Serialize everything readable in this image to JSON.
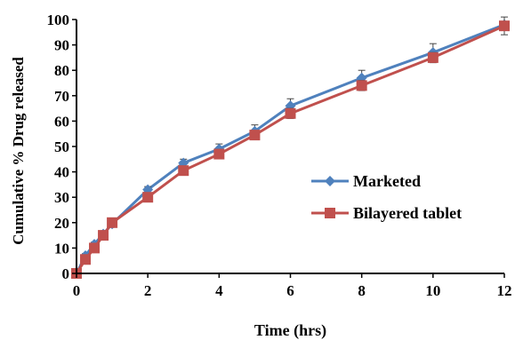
{
  "chart_data": {
    "type": "line",
    "title": "",
    "xlabel": "Time (hrs)",
    "ylabel": "Cumulative % Drug released",
    "xlim": [
      0,
      12
    ],
    "ylim": [
      0,
      100
    ],
    "xticks": [
      0,
      2,
      4,
      6,
      8,
      10,
      12
    ],
    "yticks": [
      0,
      10,
      20,
      30,
      40,
      50,
      60,
      70,
      80,
      90,
      100
    ],
    "grid": false,
    "legend_position": "right",
    "series": [
      {
        "name": "Marketed",
        "color": "#4F81BD",
        "marker": "diamond",
        "x": [
          0,
          0.25,
          0.5,
          0.75,
          1,
          2,
          3,
          4,
          5,
          6,
          8,
          10,
          12
        ],
        "y": [
          0,
          7,
          11.5,
          15.5,
          19.5,
          33,
          43.5,
          49,
          56,
          66,
          77,
          87,
          98
        ],
        "error": [
          0,
          0.8,
          0.8,
          0.8,
          1,
          1.2,
          1.5,
          2,
          2.5,
          2.8,
          3,
          3.5,
          1
        ]
      },
      {
        "name": "Bilayered tablet",
        "color": "#C0504D",
        "marker": "square",
        "x": [
          0,
          0.25,
          0.5,
          0.75,
          1,
          2,
          3,
          4,
          5,
          6,
          8,
          10,
          12
        ],
        "y": [
          0,
          5.5,
          10,
          15,
          20,
          30,
          40.5,
          47,
          54.5,
          63,
          74,
          85,
          97.5
        ],
        "error": [
          0,
          0.8,
          0.8,
          0.8,
          0.8,
          1,
          1.2,
          1.5,
          1.5,
          2,
          2,
          2,
          3.5
        ]
      }
    ]
  }
}
